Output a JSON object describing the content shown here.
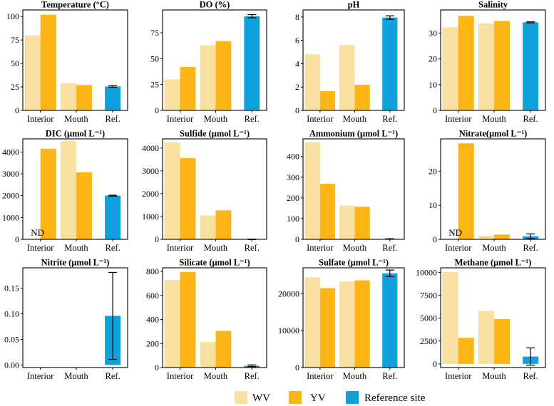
{
  "colors": {
    "WV": "#F7E0A0",
    "YV": "#FDB515",
    "Reference site": "#0EA1DC",
    "error_bar": "#000000",
    "frame": "#000000"
  },
  "legend": [
    {
      "key": "WV",
      "label": "WV"
    },
    {
      "key": "YV",
      "label": "YV"
    },
    {
      "key": "Reference site",
      "label": "Reference site"
    }
  ],
  "chart_data": [
    {
      "type": "bar",
      "title": "Temperature (°C)",
      "categories": [
        "Interior",
        "Mouth",
        "Ref."
      ],
      "ylim": [
        0,
        107
      ],
      "yticks": [
        0,
        25,
        50,
        75,
        100
      ],
      "ytick_labels": [
        "0",
        "25",
        "50",
        "75",
        "100"
      ],
      "series": [
        {
          "name": "WV",
          "cat": "Interior",
          "value": 80
        },
        {
          "name": "YV",
          "cat": "Interior",
          "value": 102
        },
        {
          "name": "WV",
          "cat": "Mouth",
          "value": 29
        },
        {
          "name": "YV",
          "cat": "Mouth",
          "value": 27
        },
        {
          "name": "Reference site",
          "cat": "Ref.",
          "value": 25.5,
          "err": 0.8
        }
      ]
    },
    {
      "type": "bar",
      "title": "DO (%)",
      "categories": [
        "Interior",
        "Mouth",
        "Ref."
      ],
      "ylim": [
        0,
        97
      ],
      "yticks": [
        0,
        25,
        50,
        75
      ],
      "ytick_labels": [
        "0",
        "25",
        "50",
        "75"
      ],
      "series": [
        {
          "name": "WV",
          "cat": "Interior",
          "value": 30
        },
        {
          "name": "YV",
          "cat": "Interior",
          "value": 42
        },
        {
          "name": "WV",
          "cat": "Mouth",
          "value": 63
        },
        {
          "name": "YV",
          "cat": "Mouth",
          "value": 67
        },
        {
          "name": "Reference site",
          "cat": "Ref.",
          "value": 91,
          "err": 1.5
        }
      ]
    },
    {
      "type": "bar",
      "title": "pH",
      "categories": [
        "Interior",
        "Mouth",
        "Ref."
      ],
      "ylim": [
        0,
        8.6
      ],
      "yticks": [
        0,
        2,
        4,
        6,
        8
      ],
      "ytick_labels": [
        "0",
        "2",
        "4",
        "6",
        "8"
      ],
      "series": [
        {
          "name": "WV",
          "cat": "Interior",
          "value": 4.8
        },
        {
          "name": "YV",
          "cat": "Interior",
          "value": 1.65
        },
        {
          "name": "WV",
          "cat": "Mouth",
          "value": 5.6
        },
        {
          "name": "YV",
          "cat": "Mouth",
          "value": 2.2
        },
        {
          "name": "Reference site",
          "cat": "Ref.",
          "value": 7.95,
          "err": 0.15
        }
      ]
    },
    {
      "type": "bar",
      "title": "Salinity",
      "categories": [
        "Interior",
        "Mouth",
        "Ref."
      ],
      "ylim": [
        0,
        39
      ],
      "yticks": [
        0,
        10,
        20,
        30
      ],
      "ytick_labels": [
        "0",
        "10",
        "20",
        "30"
      ],
      "series": [
        {
          "name": "WV",
          "cat": "Interior",
          "value": 32.3
        },
        {
          "name": "YV",
          "cat": "Interior",
          "value": 36.7
        },
        {
          "name": "WV",
          "cat": "Mouth",
          "value": 33.8
        },
        {
          "name": "YV",
          "cat": "Mouth",
          "value": 34.7
        },
        {
          "name": "Reference site",
          "cat": "Ref.",
          "value": 34.2,
          "err": 0.2
        }
      ]
    },
    {
      "type": "bar",
      "title": "DIC (μmol L⁻¹)",
      "categories": [
        "Interior",
        "Mouth",
        "Ref."
      ],
      "nd_label": "ND",
      "ylim": [
        0,
        4600
      ],
      "yticks": [
        0,
        1000,
        2000,
        3000,
        4000
      ],
      "ytick_labels": [
        "0",
        "1000",
        "2000",
        "3000",
        "4000"
      ],
      "series": [
        {
          "name": "YV",
          "cat": "Interior",
          "value": 4150
        },
        {
          "name": "WV",
          "cat": "Mouth",
          "value": 4500
        },
        {
          "name": "YV",
          "cat": "Mouth",
          "value": 3070
        },
        {
          "name": "Reference site",
          "cat": "Ref.",
          "value": 2000,
          "err": 20
        }
      ]
    },
    {
      "type": "bar",
      "title": "Sulfide (μmol L⁻¹)",
      "categories": [
        "Interior",
        "Mouth",
        "Ref."
      ],
      "ylim": [
        0,
        4400
      ],
      "yticks": [
        0,
        1000,
        2000,
        3000,
        4000
      ],
      "ytick_labels": [
        "0",
        "1000",
        "2000",
        "3000",
        "4000"
      ],
      "series": [
        {
          "name": "WV",
          "cat": "Interior",
          "value": 4250
        },
        {
          "name": "YV",
          "cat": "Interior",
          "value": 3560
        },
        {
          "name": "WV",
          "cat": "Mouth",
          "value": 1050
        },
        {
          "name": "YV",
          "cat": "Mouth",
          "value": 1270
        },
        {
          "name": "Reference site",
          "cat": "Ref.",
          "value": 0,
          "err": 10
        }
      ]
    },
    {
      "type": "bar",
      "title": "Ammonium (μmol L⁻¹)",
      "categories": [
        "Interior",
        "Mouth",
        "Ref."
      ],
      "ylim": [
        0,
        485
      ],
      "yticks": [
        0,
        100,
        200,
        300,
        400
      ],
      "ytick_labels": [
        "0",
        "100",
        "200",
        "300",
        "400"
      ],
      "series": [
        {
          "name": "WV",
          "cat": "Interior",
          "value": 470
        },
        {
          "name": "YV",
          "cat": "Interior",
          "value": 268
        },
        {
          "name": "WV",
          "cat": "Mouth",
          "value": 163
        },
        {
          "name": "YV",
          "cat": "Mouth",
          "value": 157
        },
        {
          "name": "Reference site",
          "cat": "Ref.",
          "value": 2,
          "err": 1
        }
      ]
    },
    {
      "type": "bar",
      "title": "Nitrate(μmol L⁻¹)",
      "categories": [
        "Interior",
        "Mouth",
        "Ref."
      ],
      "nd_label": "ND",
      "ylim": [
        0,
        29.5
      ],
      "yticks": [
        0,
        10,
        20
      ],
      "ytick_labels": [
        "0",
        "10",
        "20"
      ],
      "series": [
        {
          "name": "YV",
          "cat": "Interior",
          "value": 28.2
        },
        {
          "name": "WV",
          "cat": "Mouth",
          "value": 1.1
        },
        {
          "name": "YV",
          "cat": "Mouth",
          "value": 1.4
        },
        {
          "name": "Reference site",
          "cat": "Ref.",
          "value": 0.9,
          "err": 0.7
        }
      ]
    },
    {
      "type": "bar",
      "title": "Nitrite (μmol L⁻¹)",
      "categories": [
        "Interior",
        "Mouth",
        "Ref."
      ],
      "ylim": [
        -0.005,
        0.19
      ],
      "yticks": [
        0,
        0.05,
        0.1,
        0.15
      ],
      "ytick_labels": [
        "0.00",
        "0.05",
        "0.10",
        "0.15"
      ],
      "series": [
        {
          "name": "Reference site",
          "cat": "Ref.",
          "value": 0.096,
          "err": 0.085
        }
      ]
    },
    {
      "type": "bar",
      "title": "Silicate (μmol L⁻¹)",
      "categories": [
        "Interior",
        "Mouth",
        "Ref."
      ],
      "ylim": [
        0,
        830
      ],
      "yticks": [
        0,
        200,
        400,
        600,
        800
      ],
      "ytick_labels": [
        "0",
        "200",
        "400",
        "600",
        "800"
      ],
      "series": [
        {
          "name": "WV",
          "cat": "Interior",
          "value": 730
        },
        {
          "name": "YV",
          "cat": "Interior",
          "value": 795
        },
        {
          "name": "WV",
          "cat": "Mouth",
          "value": 212
        },
        {
          "name": "YV",
          "cat": "Mouth",
          "value": 305
        },
        {
          "name": "Reference site",
          "cat": "Ref.",
          "value": 15,
          "err": 7
        }
      ]
    },
    {
      "type": "bar",
      "title": "Sulfate (μmol L⁻¹)",
      "categories": [
        "Interior",
        "Mouth",
        "Ref."
      ],
      "ylim": [
        0,
        27000
      ],
      "yticks": [
        0,
        10000,
        20000
      ],
      "ytick_labels": [
        "0",
        "10000",
        "20000"
      ],
      "series": [
        {
          "name": "WV",
          "cat": "Interior",
          "value": 24400
        },
        {
          "name": "YV",
          "cat": "Interior",
          "value": 21500
        },
        {
          "name": "WV",
          "cat": "Mouth",
          "value": 23300
        },
        {
          "name": "YV",
          "cat": "Mouth",
          "value": 23600
        },
        {
          "name": "Reference site",
          "cat": "Ref.",
          "value": 25500,
          "err": 900
        }
      ]
    },
    {
      "type": "bar",
      "title": "Methane (μmol L⁻¹)",
      "categories": [
        "Interior",
        "Mouth",
        "Ref."
      ],
      "ylim": [
        -400,
        10500
      ],
      "yticks": [
        0,
        2500,
        5000,
        7500,
        10000
      ],
      "ytick_labels": [
        "0",
        "2500",
        "5000",
        "7500",
        "10000"
      ],
      "series": [
        {
          "name": "WV",
          "cat": "Interior",
          "value": 10050
        },
        {
          "name": "YV",
          "cat": "Interior",
          "value": 2850
        },
        {
          "name": "WV",
          "cat": "Mouth",
          "value": 5800
        },
        {
          "name": "YV",
          "cat": "Mouth",
          "value": 4900
        },
        {
          "name": "Reference site",
          "cat": "Ref.",
          "value": 800,
          "err": 950
        }
      ]
    }
  ]
}
